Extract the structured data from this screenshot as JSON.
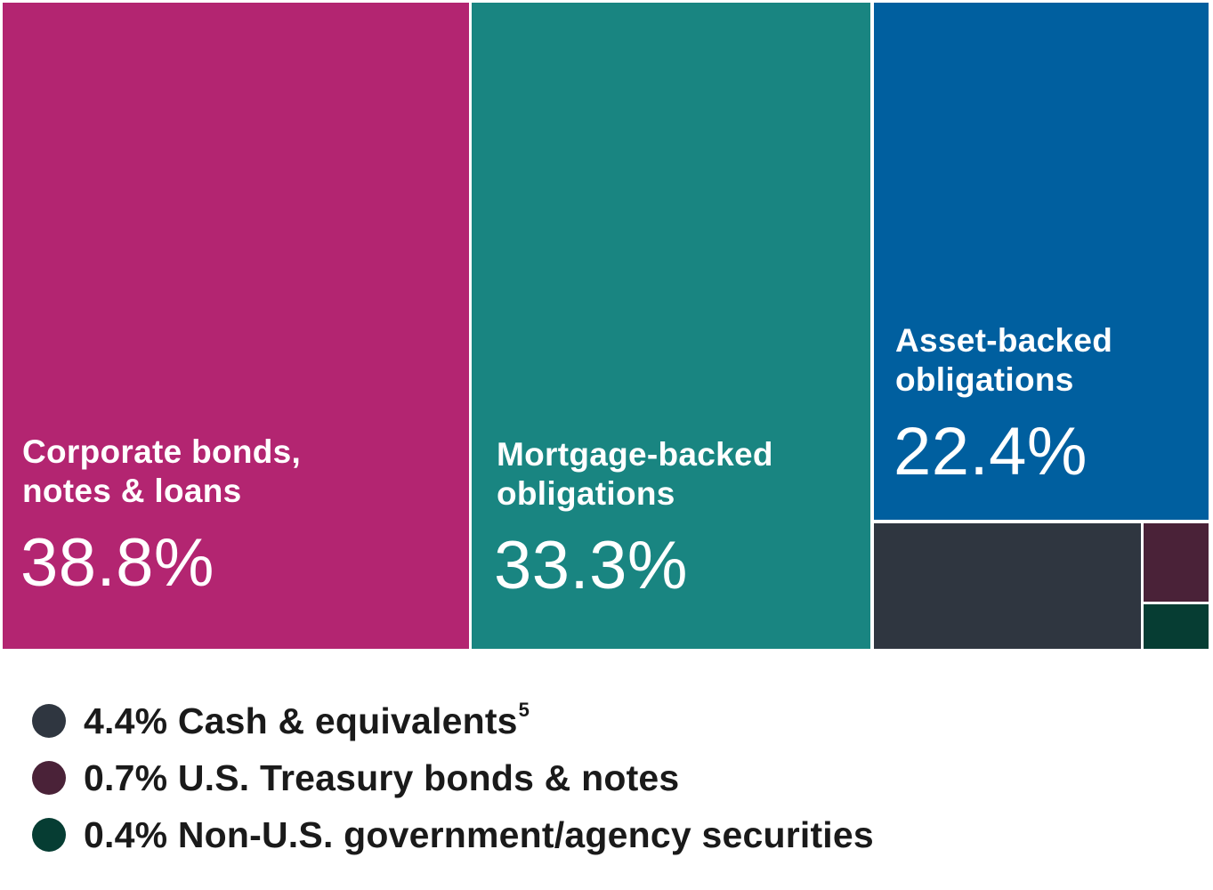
{
  "chart_data": {
    "type": "treemap",
    "unit": "%",
    "segments": [
      {
        "key": "corporate",
        "label": "Corporate bonds,\nnotes & loans",
        "value": 38.8,
        "value_label": "38.8%",
        "color": "#b32571"
      },
      {
        "key": "mortgage",
        "label": "Mortgage-backed\nobligations",
        "value": 33.3,
        "value_label": "33.3%",
        "color": "#198581"
      },
      {
        "key": "asset",
        "label": "Asset-backed\nobligations",
        "value": 22.4,
        "value_label": "22.4%",
        "color": "#005f9f"
      },
      {
        "key": "cash",
        "label": "Cash & equivalents",
        "value": 4.4,
        "value_label": "4.4%",
        "color": "#2f3640"
      },
      {
        "key": "treasury",
        "label": "U.S. Treasury bonds & notes",
        "value": 0.7,
        "value_label": "0.7%",
        "color": "#4a2238"
      },
      {
        "key": "nonus",
        "label": "Non-U.S. government/agency securities",
        "value": 0.4,
        "value_label": "0.4%",
        "color": "#063d33"
      }
    ]
  },
  "legend": [
    {
      "text": "4.4% Cash & equivalents",
      "footnote": "5",
      "color": "#2f3640"
    },
    {
      "text": "0.7% U.S. Treasury bonds & notes",
      "footnote": "",
      "color": "#4a2238"
    },
    {
      "text": "0.4% Non-U.S. government/agency securities",
      "footnote": "",
      "color": "#063d33"
    }
  ]
}
